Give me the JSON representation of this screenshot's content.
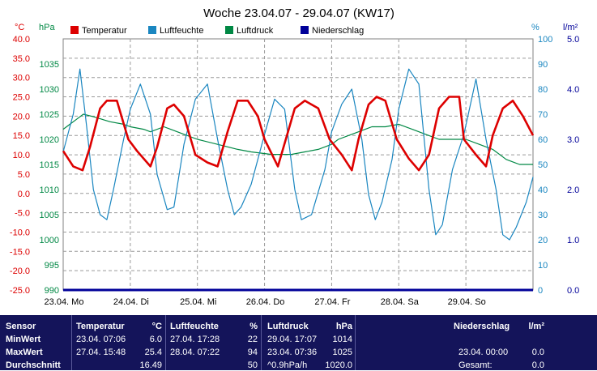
{
  "chart_data": {
    "type": "line",
    "title": "Woche 23.04.07 - 29.04.07 (KW17)",
    "legend": [
      "Temperatur",
      "Luftfeuchte",
      "Luftdruck",
      "Niederschlag"
    ],
    "legend_placement": "top-left",
    "grid": true,
    "axes": {
      "temp": {
        "unit": "°C",
        "min": -25,
        "max": 40,
        "ticks": [
          "-25.0",
          "-20.0",
          "-15.0",
          "-10.0",
          "-5.0",
          "0.0",
          "5.0",
          "10.0",
          "15.0",
          "20.0",
          "25.0",
          "30.0",
          "35.0",
          "40.0"
        ]
      },
      "pressure": {
        "unit": "hPa",
        "min": 990,
        "max": 1040,
        "ticks": [
          "990",
          "995",
          "1000",
          "1005",
          "1010",
          "1015",
          "1020",
          "1025",
          "1030",
          "1035"
        ]
      },
      "humidity": {
        "unit": "%",
        "min": 0,
        "max": 100,
        "ticks": [
          "0",
          "10",
          "20",
          "30",
          "40",
          "50",
          "60",
          "70",
          "80",
          "90",
          "100"
        ]
      },
      "rain": {
        "unit": "l/m²",
        "min": 0,
        "max": 5,
        "ticks": [
          "0.0",
          "1.0",
          "2.0",
          "3.0",
          "4.0",
          "5.0"
        ]
      }
    },
    "x_labels": [
      "23.04.  Mo",
      "24.04.  Di",
      "25.04.  Mi",
      "26.04.  Do",
      "27.04.  Fr",
      "28.04.  Sa",
      "29.04.  So"
    ],
    "x_range_days": [
      0,
      7
    ],
    "series": [
      {
        "name": "Temperatur",
        "axis": "temp",
        "color": "#dd0000",
        "x": [
          0,
          0.15,
          0.29,
          0.4,
          0.55,
          0.65,
          0.8,
          0.97,
          1.1,
          1.3,
          1.4,
          1.55,
          1.65,
          1.8,
          1.97,
          2.15,
          2.3,
          2.45,
          2.6,
          2.75,
          2.9,
          3.0,
          3.2,
          3.35,
          3.45,
          3.6,
          3.8,
          3.97,
          4.15,
          4.3,
          4.4,
          4.55,
          4.67,
          4.8,
          4.97,
          5.15,
          5.3,
          5.45,
          5.6,
          5.75,
          5.9,
          5.97,
          6.15,
          6.3,
          6.4,
          6.55,
          6.7,
          6.85,
          7.0
        ],
        "y": [
          11,
          7,
          6,
          12,
          22,
          24,
          24,
          14,
          11,
          7,
          12,
          22,
          23,
          20,
          10,
          8,
          7,
          16,
          24,
          24,
          20,
          14,
          7,
          16,
          22,
          24,
          22,
          14,
          10,
          6,
          14,
          23,
          25,
          24,
          14,
          9,
          6,
          10,
          22,
          25,
          25,
          14,
          10,
          7,
          15,
          22,
          24,
          20,
          15
        ]
      },
      {
        "name": "Luftfeuchte",
        "axis": "humidity",
        "color": "#1a86c0",
        "x": [
          0,
          0.15,
          0.25,
          0.35,
          0.45,
          0.55,
          0.65,
          0.75,
          0.9,
          1.0,
          1.15,
          1.3,
          1.4,
          1.55,
          1.65,
          1.8,
          1.97,
          2.15,
          2.3,
          2.45,
          2.55,
          2.65,
          2.8,
          3.0,
          3.15,
          3.3,
          3.45,
          3.55,
          3.7,
          3.9,
          4.0,
          4.15,
          4.3,
          4.45,
          4.55,
          4.65,
          4.75,
          4.9,
          5.0,
          5.15,
          5.3,
          5.45,
          5.55,
          5.65,
          5.8,
          5.97,
          6.15,
          6.3,
          6.45,
          6.55,
          6.65,
          6.75,
          6.9,
          7.0
        ],
        "y": [
          55,
          70,
          88,
          65,
          40,
          30,
          28,
          40,
          60,
          72,
          82,
          70,
          46,
          32,
          33,
          58,
          76,
          82,
          60,
          40,
          30,
          33,
          42,
          62,
          76,
          72,
          40,
          28,
          30,
          48,
          63,
          74,
          80,
          60,
          38,
          28,
          35,
          52,
          72,
          88,
          82,
          40,
          22,
          26,
          48,
          62,
          84,
          60,
          40,
          22,
          20,
          25,
          35,
          45
        ]
      },
      {
        "name": "Luftdruck",
        "axis": "pressure",
        "color": "#008844",
        "x": [
          0,
          0.1,
          0.2,
          0.3,
          0.45,
          0.7,
          0.9,
          1.0,
          1.2,
          1.3,
          1.5,
          1.6,
          1.8,
          2.0,
          2.3,
          2.6,
          2.8,
          3.1,
          3.4,
          3.6,
          3.8,
          4.0,
          4.1,
          4.3,
          4.5,
          4.6,
          4.8,
          5.0,
          5.2,
          5.4,
          5.6,
          5.8,
          6.0,
          6.2,
          6.4,
          6.6,
          6.8,
          7.0
        ],
        "y": [
          1022,
          1023,
          1024,
          1025,
          1024.5,
          1023.5,
          1023,
          1022.5,
          1022,
          1021.5,
          1022.5,
          1022,
          1021,
          1020,
          1019,
          1018,
          1017.5,
          1017,
          1017,
          1017.5,
          1018,
          1019,
          1020,
          1021,
          1022,
          1022.5,
          1022.5,
          1023,
          1022,
          1021,
          1020,
          1020,
          1020,
          1019,
          1018,
          1016,
          1015,
          1015
        ]
      },
      {
        "name": "Niederschlag",
        "axis": "rain",
        "color": "#000099",
        "x": [
          0,
          7
        ],
        "y": [
          0,
          0
        ]
      }
    ]
  },
  "stats": {
    "headers": {
      "sensor": "Sensor",
      "temp": "Temperatur",
      "temp_unit": "°C",
      "hum": "Luftfeuchte",
      "hum_unit": "%",
      "press": "Luftdruck",
      "press_unit": "hPa",
      "rain": "Niederschlag",
      "rain_unit": "l/m²"
    },
    "rows": [
      {
        "label": "MinWert",
        "temp_time": "23.04.  07:06",
        "temp_val": "6.0",
        "hum_time": "27.04.  17:28",
        "hum_val": "22",
        "press_time": "29.04.  17:07",
        "press_val": "1014",
        "rain_time": "",
        "rain_val": ""
      },
      {
        "label": "MaxWert",
        "temp_time": "27.04.  15:48",
        "temp_val": "25.4",
        "hum_time": "28.04.  07:22",
        "hum_val": "94",
        "press_time": "23.04.  07:36",
        "press_val": "1025",
        "rain_time": "23.04.  00:00",
        "rain_val": "0.0"
      },
      {
        "label": "Durchschnitt",
        "temp_time": "",
        "temp_val": "16.49",
        "hum_time": "",
        "hum_val": "50",
        "press_time": "^0.9hPa/h",
        "press_val": "1020.0",
        "rain_time": "Gesamt:",
        "rain_val": "0.0"
      }
    ]
  }
}
